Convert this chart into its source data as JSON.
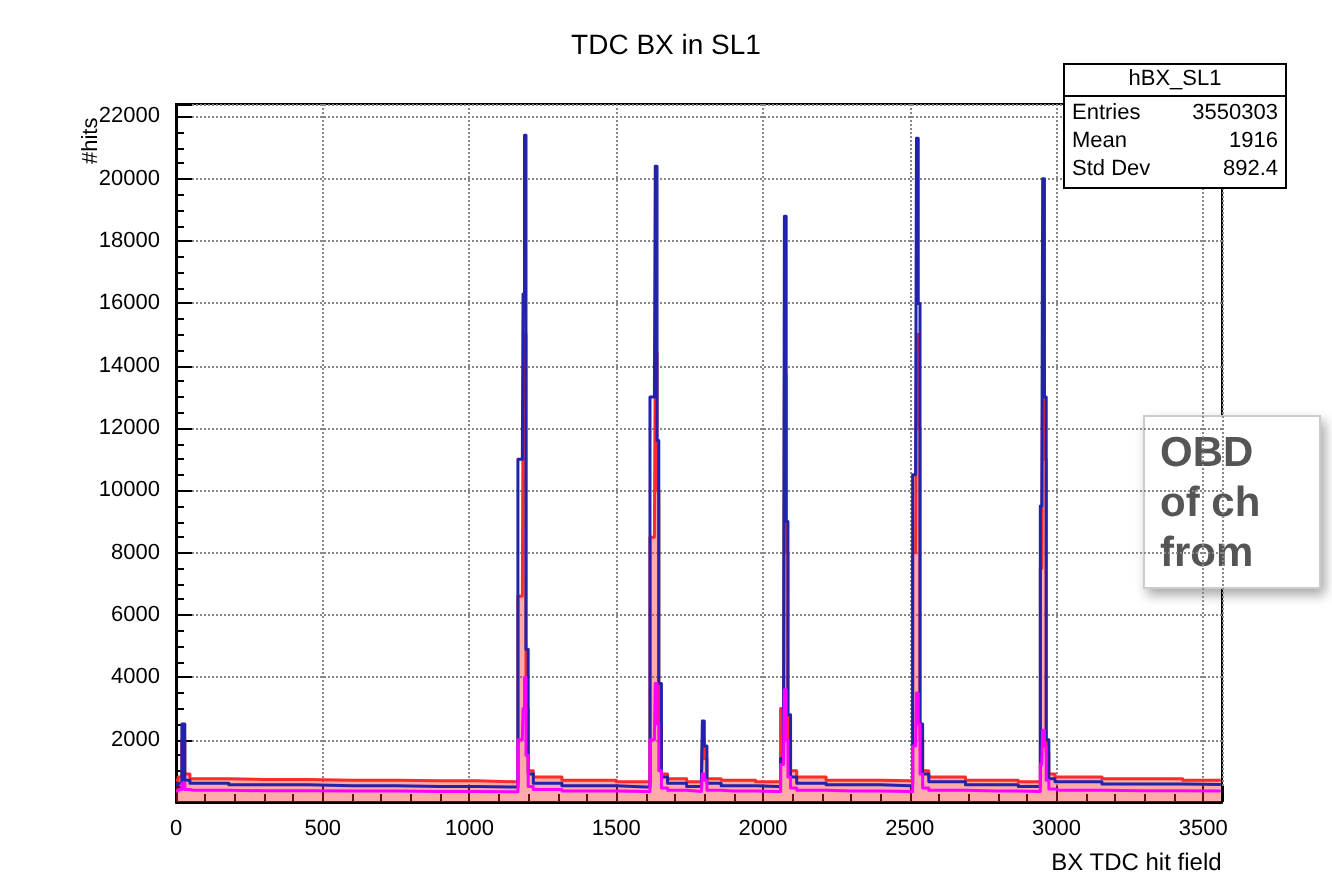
{
  "chart_data": {
    "type": "step",
    "title": "TDC BX in SL1",
    "xlabel": "BX TDC hit field",
    "ylabel": "#hits",
    "x": [
      0,
      15,
      25,
      35,
      60,
      300,
      600,
      900,
      1150,
      1180,
      1185,
      1190,
      1195,
      1205,
      1230,
      1400,
      1600,
      1630,
      1636,
      1642,
      1648,
      1660,
      1690,
      1790,
      1797,
      1803,
      1815,
      1900,
      2050,
      2070,
      2076,
      2082,
      2088,
      2100,
      2130,
      2300,
      2500,
      2520,
      2526,
      2532,
      2538,
      2550,
      2580,
      2800,
      2940,
      2950,
      2956,
      2962,
      2968,
      2980,
      3010,
      3300,
      3560
    ],
    "series": [
      {
        "type": "area",
        "color": "#ff2a2a",
        "values": [
          700,
          800,
          2000,
          900,
          750,
          720,
          700,
          680,
          650,
          6600,
          12600,
          15000,
          3000,
          1000,
          800,
          700,
          650,
          8500,
          14400,
          10000,
          2500,
          900,
          750,
          650,
          2000,
          1400,
          750,
          700,
          650,
          3000,
          13700,
          8000,
          2000,
          1000,
          800,
          700,
          680,
          8000,
          15000,
          12000,
          2000,
          1000,
          800,
          700,
          650,
          7500,
          14100,
          11000,
          1600,
          900,
          800,
          750,
          700
        ]
      },
      {
        "color": "#2222aa",
        "values": [
          550,
          600,
          2500,
          700,
          600,
          550,
          520,
          500,
          480,
          11000,
          16300,
          21400,
          4900,
          900,
          600,
          520,
          480,
          13000,
          20400,
          11600,
          3800,
          800,
          600,
          500,
          2600,
          1800,
          600,
          520,
          500,
          1400,
          18800,
          9000,
          2800,
          800,
          600,
          550,
          520,
          10500,
          21300,
          16000,
          2500,
          900,
          650,
          550,
          500,
          9500,
          20000,
          13000,
          2000,
          750,
          650,
          580,
          560
        ]
      },
      {
        "color": "#ff00ff",
        "values": [
          350,
          400,
          600,
          400,
          380,
          360,
          350,
          340,
          330,
          2000,
          3000,
          4000,
          1500,
          500,
          400,
          350,
          340,
          2000,
          3800,
          2500,
          1000,
          450,
          380,
          340,
          900,
          700,
          380,
          350,
          340,
          1200,
          3600,
          2000,
          800,
          450,
          380,
          350,
          340,
          1800,
          3500,
          2500,
          900,
          450,
          380,
          350,
          340,
          1200,
          2300,
          1800,
          700,
          420,
          380,
          360,
          350
        ]
      }
    ],
    "xlim": [
      0,
      3564
    ],
    "xticks": [
      0,
      500,
      1000,
      1500,
      2000,
      2500,
      3000,
      3500
    ],
    "ylim": [
      0,
      22400
    ],
    "yticks": [
      2000,
      4000,
      6000,
      8000,
      10000,
      12000,
      14000,
      16000,
      18000,
      20000,
      22000
    ],
    "grid": true,
    "annotations": [
      "hBX_SL1",
      "Entries 3550303",
      "Mean 1916",
      "Std Dev 892.4",
      "OBD\nof ch\nfrom"
    ]
  }
}
